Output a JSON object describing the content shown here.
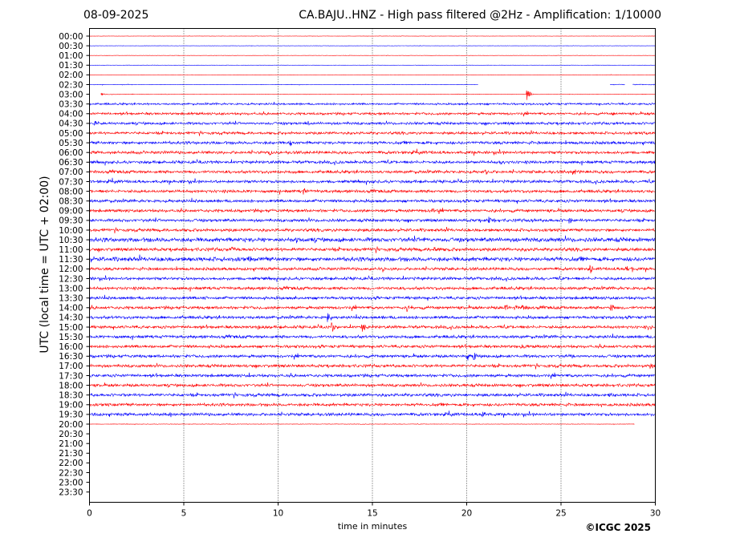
{
  "header": {
    "date": "08-09-2025",
    "title": "CA.BAJU..HNZ - High pass filtered @2Hz - Amplification: 1/10000"
  },
  "footer": {
    "copyright": "©ICGC 2025"
  },
  "chart_data": {
    "type": "line",
    "subtype": "helicorder",
    "xlabel": "time in minutes",
    "ylabel": "UTC (local time = UTC + 02:00)",
    "xlim": [
      0,
      30
    ],
    "x_ticks": [
      "0",
      "5",
      "10",
      "15",
      "20",
      "25",
      "30"
    ],
    "x_gridlines": [
      5,
      10,
      15,
      20,
      25
    ],
    "grid": "vertical dotted",
    "row_labels": [
      "00:00",
      "00:30",
      "01:00",
      "01:30",
      "02:00",
      "02:30",
      "03:00",
      "03:30",
      "04:00",
      "04:30",
      "05:00",
      "05:30",
      "06:00",
      "06:30",
      "07:00",
      "07:30",
      "08:00",
      "08:30",
      "09:00",
      "09:30",
      "10:00",
      "10:30",
      "11:00",
      "11:30",
      "12:00",
      "12:30",
      "13:00",
      "13:30",
      "14:00",
      "14:30",
      "15:00",
      "15:30",
      "16:00",
      "16:30",
      "17:00",
      "17:30",
      "18:00",
      "18:30",
      "19:00",
      "19:30",
      "20:00",
      "20:30",
      "21:00",
      "21:30",
      "22:00",
      "22:30",
      "23:00",
      "23:30"
    ],
    "trace_colors": [
      "#ff0000",
      "#0000ff"
    ],
    "traces": [
      {
        "row": "00:00",
        "color": "#ff0000",
        "start": 0,
        "end": 30,
        "noise": 0.2,
        "events": []
      },
      {
        "row": "00:30",
        "color": "#0000ff",
        "start": 0,
        "end": 30,
        "noise": 0.2,
        "events": []
      },
      {
        "row": "01:00",
        "color": "#ff0000",
        "start": 0,
        "end": 30,
        "noise": 0.2,
        "events": []
      },
      {
        "row": "01:30",
        "color": "#0000ff",
        "start": 0,
        "end": 30,
        "noise": 0.2,
        "events": []
      },
      {
        "row": "02:00",
        "color": "#ff0000",
        "start": 0,
        "end": 30,
        "noise": 0.2,
        "events": []
      },
      {
        "row": "02:30",
        "color": "#0000ff",
        "start": 0,
        "end": 20.6,
        "noise": 0.3,
        "events": [
          {
            "t": 23.25,
            "amp": 18
          }
        ]
      },
      {
        "row": "02:30",
        "color": "#0000ff",
        "start": 27.6,
        "end": 28.4,
        "noise": 0.5,
        "events": []
      },
      {
        "row": "02:30",
        "color": "#0000ff",
        "start": 28.8,
        "end": 30,
        "noise": 0.5,
        "events": []
      },
      {
        "row": "03:00",
        "color": "#ff0000",
        "start": 0.6,
        "end": 30,
        "noise": 0.3,
        "events": [
          {
            "t": 0.7,
            "amp": 2
          },
          {
            "t": 23.25,
            "amp": 8
          }
        ]
      },
      {
        "row": "03:30",
        "color": "#0000ff",
        "start": 0,
        "end": 30,
        "noise": 1.2,
        "events": []
      },
      {
        "row": "04:00",
        "color": "#ff0000",
        "start": 0,
        "end": 30,
        "noise": 1.5,
        "events": [
          {
            "t": 27.8,
            "amp": 3
          }
        ]
      },
      {
        "row": "04:30",
        "color": "#0000ff",
        "start": 0,
        "end": 30,
        "noise": 1.6,
        "events": [
          {
            "t": 0.3,
            "amp": 3
          },
          {
            "t": 11.6,
            "amp": 2.5
          }
        ]
      },
      {
        "row": "05:00",
        "color": "#ff0000",
        "start": 0,
        "end": 30,
        "noise": 1.6,
        "events": [
          {
            "t": 29.5,
            "amp": 3
          }
        ]
      },
      {
        "row": "05:30",
        "color": "#0000ff",
        "start": 0,
        "end": 30,
        "noise": 1.8,
        "events": [
          {
            "t": 10.7,
            "amp": 3
          }
        ]
      },
      {
        "row": "06:00",
        "color": "#ff0000",
        "start": 0,
        "end": 30,
        "noise": 1.8,
        "events": [
          {
            "t": 9.6,
            "amp": 3
          }
        ]
      },
      {
        "row": "06:30",
        "color": "#0000ff",
        "start": 0,
        "end": 30,
        "noise": 1.8,
        "events": [
          {
            "t": 21.8,
            "amp": 2.5
          }
        ]
      },
      {
        "row": "07:00",
        "color": "#ff0000",
        "start": 0,
        "end": 30,
        "noise": 1.8,
        "events": [
          {
            "t": 21,
            "amp": 2.5
          },
          {
            "t": 25.7,
            "amp": 5
          }
        ]
      },
      {
        "row": "07:30",
        "color": "#0000ff",
        "start": 0,
        "end": 30,
        "noise": 1.8,
        "events": []
      },
      {
        "row": "08:00",
        "color": "#ff0000",
        "start": 0,
        "end": 30,
        "noise": 1.8,
        "events": [
          {
            "t": 11.4,
            "amp": 5
          }
        ]
      },
      {
        "row": "08:30",
        "color": "#0000ff",
        "start": 0,
        "end": 30,
        "noise": 1.8,
        "events": []
      },
      {
        "row": "09:00",
        "color": "#ff0000",
        "start": 0,
        "end": 30,
        "noise": 1.8,
        "events": [
          {
            "t": 18.2,
            "amp": 3
          }
        ]
      },
      {
        "row": "09:30",
        "color": "#0000ff",
        "start": 0,
        "end": 30,
        "noise": 1.8,
        "events": [
          {
            "t": 21.2,
            "amp": 7
          },
          {
            "t": 23.5,
            "amp": 3
          },
          {
            "t": 25.5,
            "amp": 3
          }
        ]
      },
      {
        "row": "10:00",
        "color": "#ff0000",
        "start": 0,
        "end": 30,
        "noise": 1.8,
        "events": []
      },
      {
        "row": "10:30",
        "color": "#0000ff",
        "start": 0,
        "end": 30,
        "noise": 2.6,
        "events": [
          {
            "t": 11,
            "amp": 3
          },
          {
            "t": 17.8,
            "amp": 3
          }
        ]
      },
      {
        "row": "11:00",
        "color": "#ff0000",
        "start": 0,
        "end": 30,
        "noise": 2.0,
        "events": [
          {
            "t": 7.6,
            "amp": 3
          },
          {
            "t": 18.3,
            "amp": 3
          }
        ]
      },
      {
        "row": "11:30",
        "color": "#0000ff",
        "start": 0,
        "end": 30,
        "noise": 2.6,
        "events": [
          {
            "t": 8.5,
            "amp": 3
          }
        ]
      },
      {
        "row": "12:00",
        "color": "#ff0000",
        "start": 0,
        "end": 30,
        "noise": 1.8,
        "events": [
          {
            "t": 15.6,
            "amp": 3
          },
          {
            "t": 26.6,
            "amp": 6
          },
          {
            "t": 28.5,
            "amp": 4
          }
        ]
      },
      {
        "row": "12:30",
        "color": "#0000ff",
        "start": 0,
        "end": 30,
        "noise": 1.8,
        "events": []
      },
      {
        "row": "13:00",
        "color": "#ff0000",
        "start": 0,
        "end": 30,
        "noise": 1.8,
        "events": []
      },
      {
        "row": "13:30",
        "color": "#0000ff",
        "start": 0,
        "end": 30,
        "noise": 1.8,
        "events": [
          {
            "t": 6.1,
            "amp": 3
          }
        ]
      },
      {
        "row": "14:00",
        "color": "#ff0000",
        "start": 0,
        "end": 30,
        "noise": 1.8,
        "events": [
          {
            "t": 16.9,
            "amp": 4
          },
          {
            "t": 22.1,
            "amp": 5
          },
          {
            "t": 22.6,
            "amp": 4
          },
          {
            "t": 23,
            "amp": 3
          },
          {
            "t": 27.7,
            "amp": 4
          }
        ]
      },
      {
        "row": "14:30",
        "color": "#0000ff",
        "start": 0,
        "end": 30,
        "noise": 1.8,
        "events": [
          {
            "t": 12.7,
            "amp": 5
          },
          {
            "t": 19.3,
            "amp": 5
          }
        ]
      },
      {
        "row": "15:00",
        "color": "#ff0000",
        "start": 0,
        "end": 30,
        "noise": 1.8,
        "events": [
          {
            "t": 9,
            "amp": 5
          },
          {
            "t": 12.9,
            "amp": 5
          },
          {
            "t": 14.5,
            "amp": 5
          },
          {
            "t": 29.7,
            "amp": 3
          }
        ]
      },
      {
        "row": "15:30",
        "color": "#0000ff",
        "start": 0,
        "end": 30,
        "noise": 1.8,
        "events": []
      },
      {
        "row": "16:00",
        "color": "#ff0000",
        "start": 0,
        "end": 30,
        "noise": 1.8,
        "events": [
          {
            "t": 22.9,
            "amp": 3
          }
        ]
      },
      {
        "row": "16:30",
        "color": "#0000ff",
        "start": 0,
        "end": 30,
        "noise": 1.8,
        "events": [
          {
            "t": 20.1,
            "amp": 5
          },
          {
            "t": 20.4,
            "amp": 5
          },
          {
            "t": 25.5,
            "amp": 3
          }
        ]
      },
      {
        "row": "17:00",
        "color": "#ff0000",
        "start": 0,
        "end": 30,
        "noise": 1.8,
        "events": [
          {
            "t": 29.8,
            "amp": 3
          }
        ]
      },
      {
        "row": "17:30",
        "color": "#0000ff",
        "start": 0,
        "end": 30,
        "noise": 1.8,
        "events": [
          {
            "t": 8.5,
            "amp": 3
          }
        ]
      },
      {
        "row": "18:00",
        "color": "#ff0000",
        "start": 0,
        "end": 30,
        "noise": 1.8,
        "events": []
      },
      {
        "row": "18:30",
        "color": "#0000ff",
        "start": 0,
        "end": 30,
        "noise": 1.8,
        "events": [
          {
            "t": 27.6,
            "amp": 3
          }
        ]
      },
      {
        "row": "19:00",
        "color": "#ff0000",
        "start": 0,
        "end": 30,
        "noise": 1.8,
        "events": [
          {
            "t": 27.2,
            "amp": 3
          }
        ]
      },
      {
        "row": "19:30",
        "color": "#0000ff",
        "start": 0,
        "end": 30,
        "noise": 1.8,
        "events": [
          {
            "t": 0.2,
            "amp": 3
          },
          {
            "t": 4.3,
            "amp": 3
          },
          {
            "t": 20.9,
            "amp": 3
          }
        ]
      },
      {
        "row": "20:00",
        "color": "#ff0000",
        "start": 0,
        "end": 28.9,
        "noise": 0.3,
        "events": []
      }
    ]
  }
}
